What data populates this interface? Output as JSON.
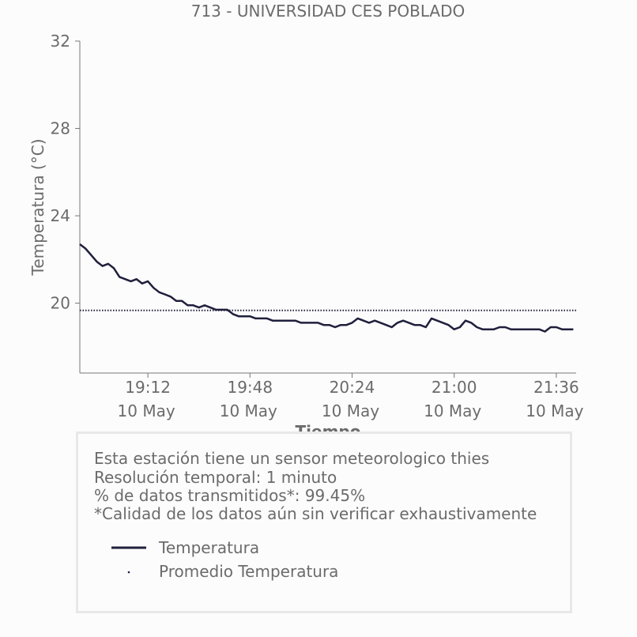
{
  "chart_data": {
    "type": "line",
    "title": "713 - UNIVERSIDAD CES POBLADO",
    "xlabel": "Tiempo",
    "ylabel": "Temperatura (°C)",
    "ylim": [
      16.8,
      32
    ],
    "xlim": [
      "2023-05-10 18:48",
      "2023-05-10 21:43"
    ],
    "yticks": [
      20,
      24,
      28,
      32
    ],
    "xticks": [
      {
        "time": "19:12",
        "date": "10 May"
      },
      {
        "time": "19:48",
        "date": "10 May"
      },
      {
        "time": "20:24",
        "date": "10 May"
      },
      {
        "time": "21:00",
        "date": "10 May"
      },
      {
        "time": "21:36",
        "date": "10 May"
      }
    ],
    "grid": false,
    "series": [
      {
        "name": "Temperatura",
        "color": "#1f1f3d",
        "x": [
          "18:48",
          "18:50",
          "18:52",
          "18:54",
          "18:56",
          "18:58",
          "19:00",
          "19:02",
          "19:04",
          "19:06",
          "19:08",
          "19:10",
          "19:12",
          "19:14",
          "19:16",
          "19:18",
          "19:20",
          "19:22",
          "19:24",
          "19:26",
          "19:28",
          "19:30",
          "19:32",
          "19:34",
          "19:36",
          "19:38",
          "19:40",
          "19:42",
          "19:44",
          "19:46",
          "19:48",
          "19:50",
          "19:52",
          "19:54",
          "19:56",
          "19:58",
          "20:00",
          "20:02",
          "20:04",
          "20:06",
          "20:08",
          "20:10",
          "20:12",
          "20:14",
          "20:16",
          "20:18",
          "20:20",
          "20:22",
          "20:24",
          "20:26",
          "20:28",
          "20:30",
          "20:32",
          "20:34",
          "20:36",
          "20:38",
          "20:40",
          "20:42",
          "20:44",
          "20:46",
          "20:48",
          "20:50",
          "20:52",
          "20:54",
          "20:56",
          "20:58",
          "21:00",
          "21:02",
          "21:04",
          "21:06",
          "21:08",
          "21:10",
          "21:12",
          "21:14",
          "21:16",
          "21:18",
          "21:20",
          "21:22",
          "21:24",
          "21:26",
          "21:28",
          "21:30",
          "21:32",
          "21:34",
          "21:36",
          "21:38",
          "21:40",
          "21:42"
        ],
        "y": [
          22.7,
          22.5,
          22.2,
          21.9,
          21.7,
          21.8,
          21.6,
          21.2,
          21.1,
          21.0,
          21.1,
          20.9,
          21.0,
          20.7,
          20.5,
          20.4,
          20.3,
          20.1,
          20.1,
          19.9,
          19.9,
          19.8,
          19.9,
          19.8,
          19.7,
          19.7,
          19.7,
          19.5,
          19.4,
          19.4,
          19.4,
          19.3,
          19.3,
          19.3,
          19.2,
          19.2,
          19.2,
          19.2,
          19.2,
          19.1,
          19.1,
          19.1,
          19.1,
          19.0,
          19.0,
          18.9,
          19.0,
          19.0,
          19.1,
          19.3,
          19.2,
          19.1,
          19.2,
          19.1,
          19.0,
          18.9,
          19.1,
          19.2,
          19.1,
          19.0,
          19.0,
          18.9,
          19.3,
          19.2,
          19.1,
          19.0,
          18.8,
          18.9,
          19.2,
          19.1,
          18.9,
          18.8,
          18.8,
          18.8,
          18.9,
          18.9,
          18.8,
          18.8,
          18.8,
          18.8,
          18.8,
          18.8,
          18.7,
          18.9,
          18.9,
          18.8,
          18.8,
          18.8
        ]
      },
      {
        "name": "Promedio Temperatura",
        "color": "#1f1f3d",
        "style": "dotted",
        "y_constant": 19.67
      }
    ]
  },
  "info": {
    "line1": "Esta estación tiene un sensor meteorologico thies",
    "line2": "Resolución temporal: 1 minuto",
    "line3": "% de datos transmitidos*: 99.45%",
    "line4": "*Calidad de los datos aún sin verificar exhaustivamente"
  },
  "legend": {
    "temp_label": "Temperatura",
    "avg_label": "Promedio Temperatura"
  },
  "colors": {
    "series": "#1f1f3d",
    "text": "#6b6b6b",
    "axis": "#777777",
    "box_border": "#e8e8e8"
  }
}
